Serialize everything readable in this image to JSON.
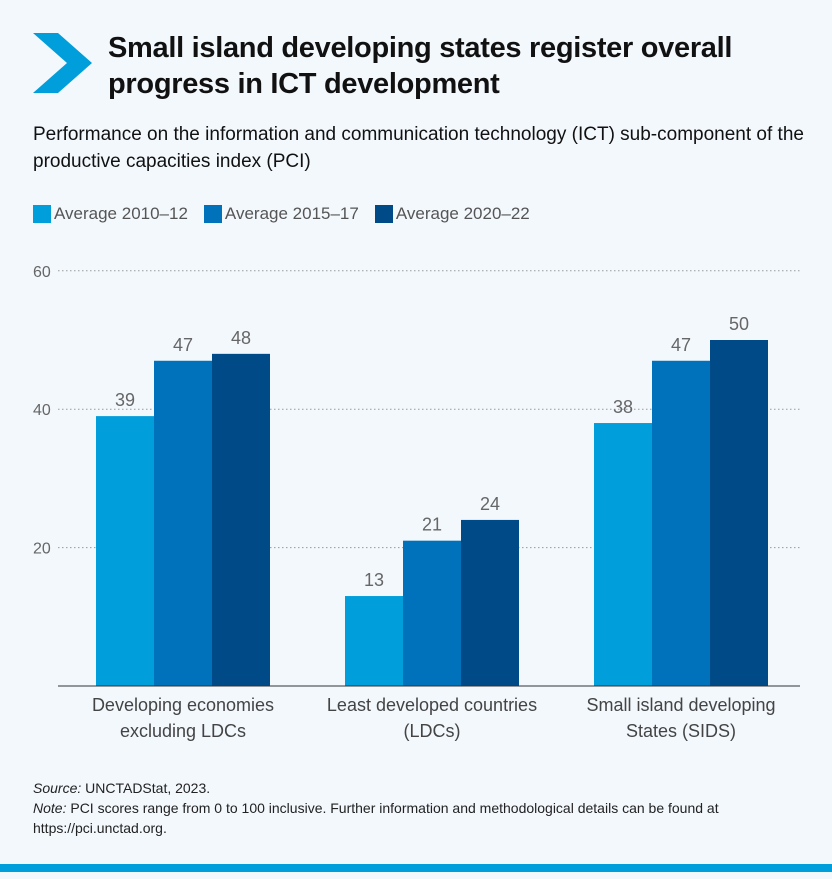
{
  "header": {
    "icon": "chevron-right-icon",
    "title": "Small island developing states register overall progress in ICT development",
    "subtitle": "Performance on the information and communication technology (ICT) sub-component of the productive capacities index (PCI)"
  },
  "colors": {
    "series1": "#009edb",
    "series2": "#0072bc",
    "series3": "#004a88",
    "accent": "#009edb",
    "background": "#f3f8fd"
  },
  "chart_data": {
    "type": "bar",
    "title": "",
    "xlabel": "",
    "ylabel": "",
    "ylim": [
      0,
      60
    ],
    "yticks": [
      20,
      40,
      60
    ],
    "grid": true,
    "legend_placement": "top-left",
    "categories": [
      "Developing economies excluding LDCs",
      "Least developed countries (LDCs)",
      "Small island developing States (SIDS)"
    ],
    "category_lines": [
      [
        "Developing economies",
        "excluding LDCs"
      ],
      [
        "Least developed countries",
        "(LDCs)"
      ],
      [
        "Small island developing",
        "States (SIDS)"
      ]
    ],
    "series": [
      {
        "name": "Average 2010–12",
        "values": [
          39,
          13,
          38
        ]
      },
      {
        "name": "Average 2015–17",
        "values": [
          47,
          21,
          47
        ]
      },
      {
        "name": "Average 2020–22",
        "values": [
          48,
          24,
          50
        ]
      }
    ]
  },
  "footer": {
    "source_label": "Source:",
    "source_text": " UNCTADStat, 2023.",
    "note_label": "Note:",
    "note_text": " PCI scores range from 0 to 100 inclusive. Further information and methodological details can be found at https://pci.unctad.org."
  }
}
